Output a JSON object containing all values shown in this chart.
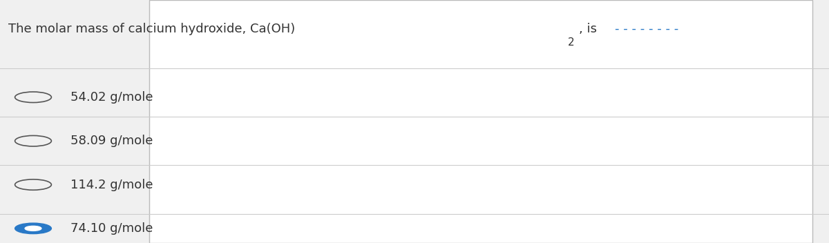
{
  "title": "The molar mass of calcium hydroxide, Ca(OH)₂, is ________.",
  "title_plain": "The molar mass of calcium hydroxide, Ca(OH)",
  "title_sub": "2",
  "title_end": ", is ————————.",
  "options": [
    {
      "label": "54.02 g/mole",
      "selected": false
    },
    {
      "label": "58.09 g/mole",
      "selected": false
    },
    {
      "label": "114.2 g/mole",
      "selected": false
    },
    {
      "label": "74.10 g/mole",
      "selected": true
    }
  ],
  "bg_color": "#f0f0f0",
  "card_color": "#ffffff",
  "text_color": "#333333",
  "circle_color": "#555555",
  "selected_color": "#2979c7",
  "line_color": "#cccccc",
  "font_size": 13,
  "title_font_size": 13
}
